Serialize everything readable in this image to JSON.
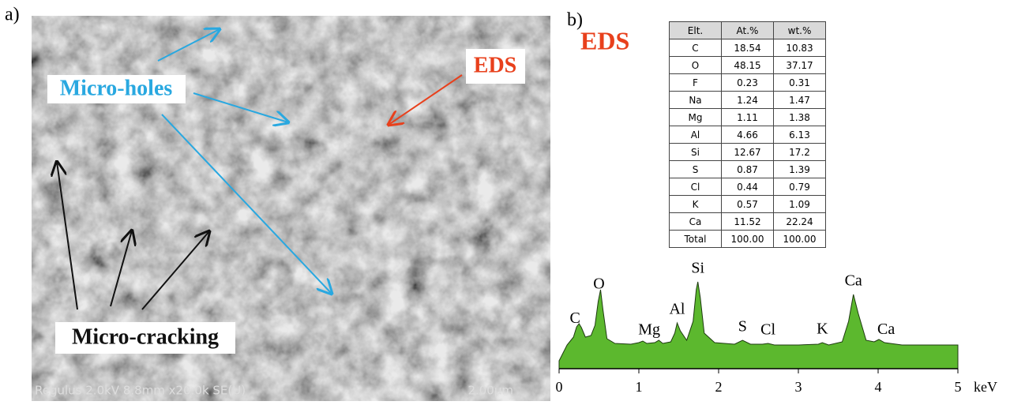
{
  "panels": {
    "a": "a)",
    "b": "b)"
  },
  "sem": {
    "holes": "Micro-holes",
    "eds": "EDS",
    "cracking": "Micro-cracking",
    "caption": "Regulus 2.0kV 8.8mm x20.0k SE(U)",
    "scale": "2.00μm"
  },
  "eds_title": "EDS",
  "table": {
    "header": [
      "Elt.",
      "At.%",
      "wt.%"
    ],
    "rows": [
      [
        "C",
        "18.54",
        "10.83"
      ],
      [
        "O",
        "48.15",
        "37.17"
      ],
      [
        "F",
        "0.23",
        "0.31"
      ],
      [
        "Na",
        "1.24",
        "1.47"
      ],
      [
        "Mg",
        "1.11",
        "1.38"
      ],
      [
        "Al",
        "4.66",
        "6.13"
      ],
      [
        "Si",
        "12.67",
        "17.2"
      ],
      [
        "S",
        "0.87",
        "1.39"
      ],
      [
        "Cl",
        "0.44",
        "0.79"
      ],
      [
        "K",
        "0.57",
        "1.09"
      ],
      [
        "Ca",
        "11.52",
        "22.24"
      ],
      [
        "Total",
        "100.00",
        "100.00"
      ]
    ]
  },
  "chart_data": {
    "type": "area",
    "color": "#5cb82e",
    "x_label": "keV",
    "x": [
      0,
      0.1,
      0.18,
      0.22,
      0.25,
      0.28,
      0.33,
      0.4,
      0.45,
      0.49,
      0.52,
      0.55,
      0.6,
      0.7,
      0.9,
      1.0,
      1.05,
      1.1,
      1.2,
      1.25,
      1.3,
      1.4,
      1.45,
      1.48,
      1.52,
      1.6,
      1.68,
      1.72,
      1.74,
      1.77,
      1.82,
      1.95,
      2.2,
      2.3,
      2.4,
      2.55,
      2.62,
      2.7,
      3.0,
      3.25,
      3.3,
      3.38,
      3.55,
      3.63,
      3.69,
      3.75,
      3.85,
      3.95,
      4.01,
      4.08,
      4.3,
      5.0
    ],
    "values": [
      10,
      30,
      40,
      53,
      57,
      52,
      40,
      42,
      55,
      85,
      100,
      75,
      38,
      32,
      31,
      33,
      35,
      32,
      33,
      36,
      32,
      34,
      45,
      58,
      48,
      36,
      60,
      100,
      110,
      90,
      45,
      33,
      31,
      36,
      31,
      31,
      32,
      30,
      30,
      31,
      33,
      30,
      34,
      60,
      94,
      70,
      36,
      34,
      37,
      33,
      30,
      30
    ],
    "xlim": [
      0,
      5
    ],
    "xticks": [
      0,
      1,
      2,
      3,
      4,
      5
    ],
    "ylim": [
      0,
      110
    ],
    "annotations": [
      {
        "text": "C",
        "x": 0.2
      },
      {
        "text": "O",
        "x": 0.5
      },
      {
        "text": "Mg",
        "x": 1.13
      },
      {
        "text": "Al",
        "x": 1.48
      },
      {
        "text": "Si",
        "x": 1.74
      },
      {
        "text": "S",
        "x": 2.3
      },
      {
        "text": "Cl",
        "x": 2.62
      },
      {
        "text": "K",
        "x": 3.3
      },
      {
        "text": "Ca",
        "x": 3.69
      },
      {
        "text": "Ca",
        "x": 4.1
      }
    ]
  }
}
